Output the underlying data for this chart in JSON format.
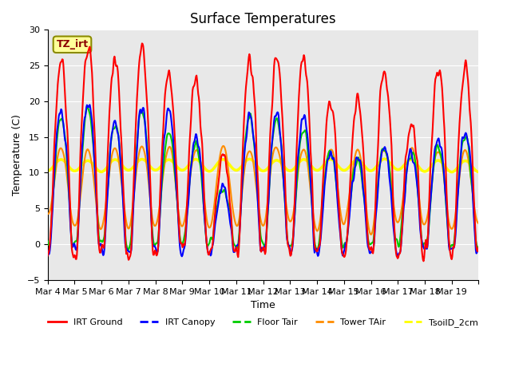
{
  "title": "Surface Temperatures",
  "xlabel": "Time",
  "ylabel": "Temperature (C)",
  "ylim": [
    -5,
    30
  ],
  "annotation": "TZ_irt",
  "legend": [
    "IRT Ground",
    "IRT Canopy",
    "Floor Tair",
    "Tower TAir",
    "TsoilD_2cm"
  ],
  "colors": [
    "#FF0000",
    "#0000FF",
    "#00CC00",
    "#FF8C00",
    "#FFFF00"
  ],
  "line_widths": [
    1.5,
    1.5,
    1.5,
    1.5,
    2.5
  ],
  "x_tick_labels": [
    "Mar 4",
    "Mar 5",
    "Mar 6",
    "Mar 7",
    "Mar 8",
    "Mar 9",
    "Mar 10",
    "Mar 11",
    "Mar 12",
    "Mar 13",
    "Mar 14",
    "Mar 15",
    "Mar 16",
    "Mar 17",
    "Mar 18",
    "Mar 19"
  ],
  "n_days": 16,
  "pts_per_day": 48,
  "background_color": "#E8E8E8"
}
